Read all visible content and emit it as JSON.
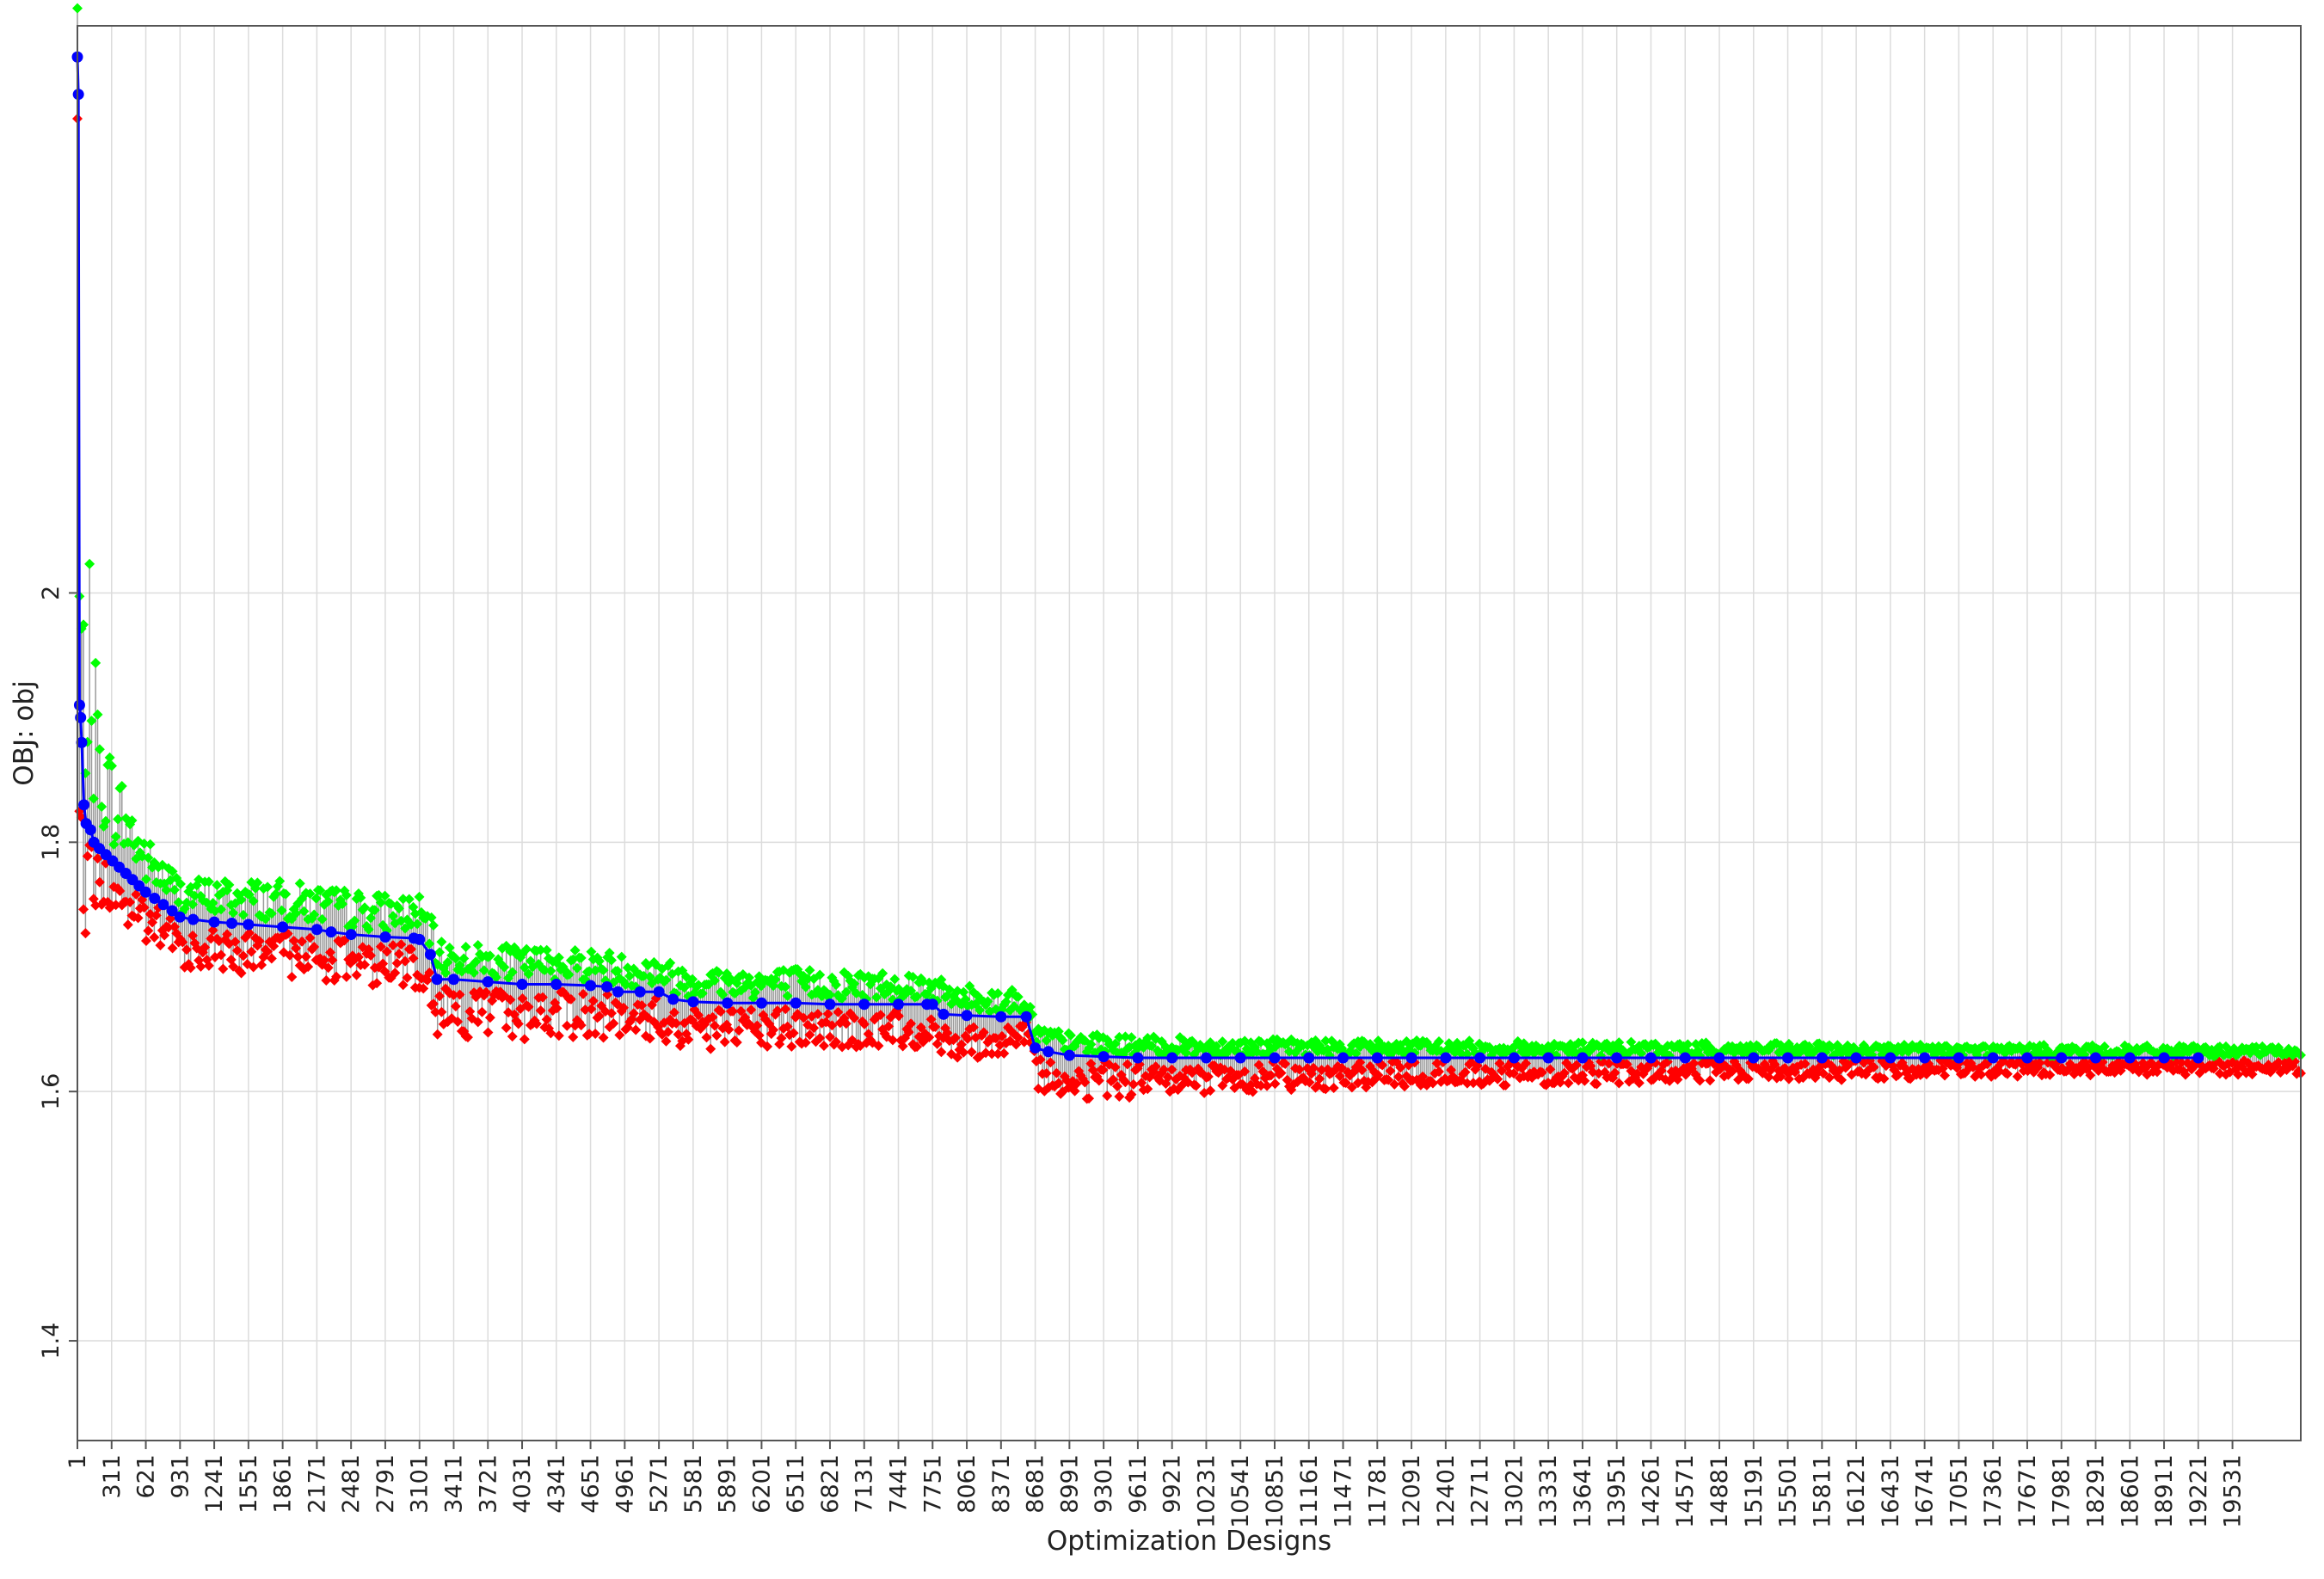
{
  "chart_data": {
    "type": "line",
    "title": "",
    "xlabel": "Optimization Designs",
    "ylabel": "OBJ: obj",
    "xlim": [
      1,
      20150
    ],
    "ylim": [
      1.32,
      2.455
    ],
    "x_ticks": [
      1,
      311,
      621,
      931,
      1241,
      1551,
      1861,
      2171,
      2481,
      2791,
      3101,
      3411,
      3721,
      4031,
      4341,
      4651,
      4961,
      5271,
      5581,
      5891,
      6201,
      6511,
      6821,
      7131,
      7441,
      7751,
      8061,
      8371,
      8681,
      8991,
      9301,
      9611,
      9921,
      10231,
      10541,
      10851,
      11161,
      11471,
      11781,
      12091,
      12401,
      12711,
      13021,
      13331,
      13641,
      13951,
      14261,
      14571,
      14881,
      15191,
      15501,
      15811,
      16121,
      16431,
      16741,
      17051,
      17361,
      17671,
      17981,
      18291,
      18601,
      18911,
      19221,
      19531
    ],
    "y_ticks": [
      1.4,
      1.6,
      1.8,
      2
    ],
    "grid": true,
    "colors": {
      "best": "#0000ff",
      "upper": "#00ff00",
      "lower": "#ff0000",
      "spread": "#9a9a9a",
      "grid": "#dcdcdc",
      "frame": "#555555"
    },
    "series": [
      {
        "marker": "circle",
        "color": "#0000ff",
        "points": [
          [
            1,
            2.43
          ],
          [
            10,
            2.4
          ],
          [
            20,
            1.91
          ],
          [
            30,
            1.9
          ],
          [
            40,
            1.88
          ],
          [
            60,
            1.83
          ],
          [
            80,
            1.815
          ],
          [
            120,
            1.81
          ],
          [
            150,
            1.8
          ],
          [
            200,
            1.795
          ],
          [
            260,
            1.79
          ],
          [
            320,
            1.785
          ],
          [
            380,
            1.78
          ],
          [
            440,
            1.775
          ],
          [
            500,
            1.77
          ],
          [
            560,
            1.765
          ],
          [
            620,
            1.76
          ],
          [
            700,
            1.755
          ],
          [
            780,
            1.75
          ],
          [
            860,
            1.745
          ],
          [
            930,
            1.74
          ],
          [
            1050,
            1.738
          ],
          [
            1241,
            1.736
          ],
          [
            1400,
            1.735
          ],
          [
            1551,
            1.734
          ],
          [
            1861,
            1.732
          ],
          [
            2171,
            1.73
          ],
          [
            2300,
            1.728
          ],
          [
            2481,
            1.726
          ],
          [
            2791,
            1.724
          ],
          [
            3050,
            1.723
          ],
          [
            3101,
            1.722
          ],
          [
            3200,
            1.71
          ],
          [
            3260,
            1.69
          ],
          [
            3411,
            1.69
          ],
          [
            3721,
            1.688
          ],
          [
            4031,
            1.686
          ],
          [
            4341,
            1.686
          ],
          [
            4651,
            1.685
          ],
          [
            4800,
            1.684
          ],
          [
            4900,
            1.68
          ],
          [
            5100,
            1.68
          ],
          [
            5271,
            1.68
          ],
          [
            5400,
            1.674
          ],
          [
            5581,
            1.672
          ],
          [
            5891,
            1.671
          ],
          [
            6201,
            1.671
          ],
          [
            6511,
            1.671
          ],
          [
            6821,
            1.67
          ],
          [
            7131,
            1.67
          ],
          [
            7441,
            1.67
          ],
          [
            7700,
            1.67
          ],
          [
            7751,
            1.67
          ],
          [
            7850,
            1.662
          ],
          [
            8061,
            1.661
          ],
          [
            8371,
            1.66
          ],
          [
            8600,
            1.66
          ],
          [
            8681,
            1.635
          ],
          [
            8800,
            1.632
          ],
          [
            8991,
            1.629
          ],
          [
            9301,
            1.628
          ],
          [
            9611,
            1.627
          ],
          [
            9921,
            1.627
          ],
          [
            10231,
            1.627
          ],
          [
            10541,
            1.627
          ],
          [
            10851,
            1.627
          ],
          [
            11161,
            1.627
          ],
          [
            11471,
            1.627
          ],
          [
            11781,
            1.627
          ],
          [
            12091,
            1.627
          ],
          [
            12401,
            1.627
          ],
          [
            12711,
            1.627
          ],
          [
            13021,
            1.627
          ],
          [
            13331,
            1.627
          ],
          [
            13641,
            1.627
          ],
          [
            13951,
            1.627
          ],
          [
            14261,
            1.627
          ],
          [
            14571,
            1.627
          ],
          [
            14881,
            1.627
          ],
          [
            15191,
            1.627
          ],
          [
            15501,
            1.627
          ],
          [
            15811,
            1.627
          ],
          [
            16121,
            1.627
          ],
          [
            16431,
            1.627
          ],
          [
            16741,
            1.627
          ],
          [
            17051,
            1.627
          ],
          [
            17361,
            1.627
          ],
          [
            17671,
            1.627
          ],
          [
            17981,
            1.627
          ],
          [
            18291,
            1.627
          ],
          [
            18601,
            1.627
          ],
          [
            18911,
            1.627
          ],
          [
            19221,
            1.627
          ]
        ]
      },
      {
        "marker": "diamond",
        "color": "#00ff00",
        "spread": [
          [
            1,
            0.04
          ],
          [
            100,
            0.15
          ],
          [
            200,
            0.08
          ],
          [
            300,
            0.06
          ],
          [
            620,
            0.03
          ],
          [
            930,
            0.022
          ],
          [
            1550,
            0.025
          ],
          [
            3101,
            0.023
          ],
          [
            3400,
            0.02
          ],
          [
            5000,
            0.02
          ],
          [
            7700,
            0.018
          ],
          [
            8681,
            0.014
          ],
          [
            9000,
            0.012
          ],
          [
            11000,
            0.01
          ],
          [
            15000,
            0.008
          ],
          [
            20150,
            0.006
          ]
        ]
      },
      {
        "marker": "diamond",
        "color": "#ff0000",
        "spread": [
          [
            1,
            0.08
          ],
          [
            100,
            0.05
          ],
          [
            200,
            0.03
          ],
          [
            620,
            0.028
          ],
          [
            930,
            0.025
          ],
          [
            3101,
            0.025
          ],
          [
            3400,
            0.03
          ],
          [
            5000,
            0.025
          ],
          [
            7700,
            0.022
          ],
          [
            8681,
            0.02
          ],
          [
            9000,
            0.022
          ],
          [
            11000,
            0.016
          ],
          [
            15000,
            0.012
          ],
          [
            20150,
            0.008
          ]
        ]
      }
    ]
  }
}
